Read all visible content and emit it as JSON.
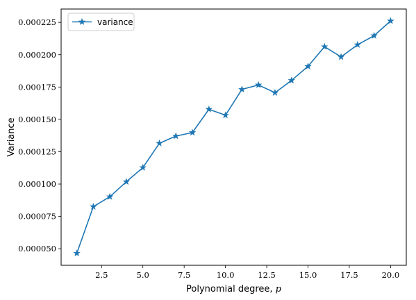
{
  "chart_data": {
    "type": "line",
    "xlabel": "Polynomial degree, ",
    "xlabel_var": "p",
    "ylabel": "Variance",
    "x_ticks": [
      2.5,
      5.0,
      7.5,
      10.0,
      12.5,
      15.0,
      17.5,
      20.0
    ],
    "x_tick_labels": [
      "2.5",
      "5.0",
      "7.5",
      "10.0",
      "12.5",
      "15.0",
      "17.5",
      "20.0"
    ],
    "y_ticks": [
      5e-05,
      7.5e-05,
      0.0001,
      0.000125,
      0.00015,
      0.000175,
      0.0002,
      0.000225
    ],
    "y_tick_labels": [
      "0.000050",
      "0.000075",
      "0.000100",
      "0.000125",
      "0.000150",
      "0.000175",
      "0.000200",
      "0.000225"
    ],
    "xlim": [
      0.05,
      20.95
    ],
    "ylim": [
      3.72e-05,
      0.0002353
    ],
    "grid": false,
    "legend_position": "upper left",
    "series": [
      {
        "name": "variance",
        "color": "#1f77b4",
        "marker": "star",
        "x": [
          1,
          2,
          3,
          4,
          5,
          6,
          7,
          8,
          9,
          10,
          11,
          12,
          13,
          14,
          15,
          16,
          17,
          18,
          19,
          20
        ],
        "y": [
          4.65e-05,
          8.25e-05,
          9.02e-05,
          0.0001018,
          0.0001127,
          0.0001315,
          0.0001371,
          0.0001398,
          0.0001578,
          0.0001532,
          0.0001732,
          0.0001766,
          0.0001706,
          0.0001801,
          0.000191,
          0.0002062,
          0.0001983,
          0.0002077,
          0.0002147,
          0.0002261
        ]
      }
    ]
  }
}
